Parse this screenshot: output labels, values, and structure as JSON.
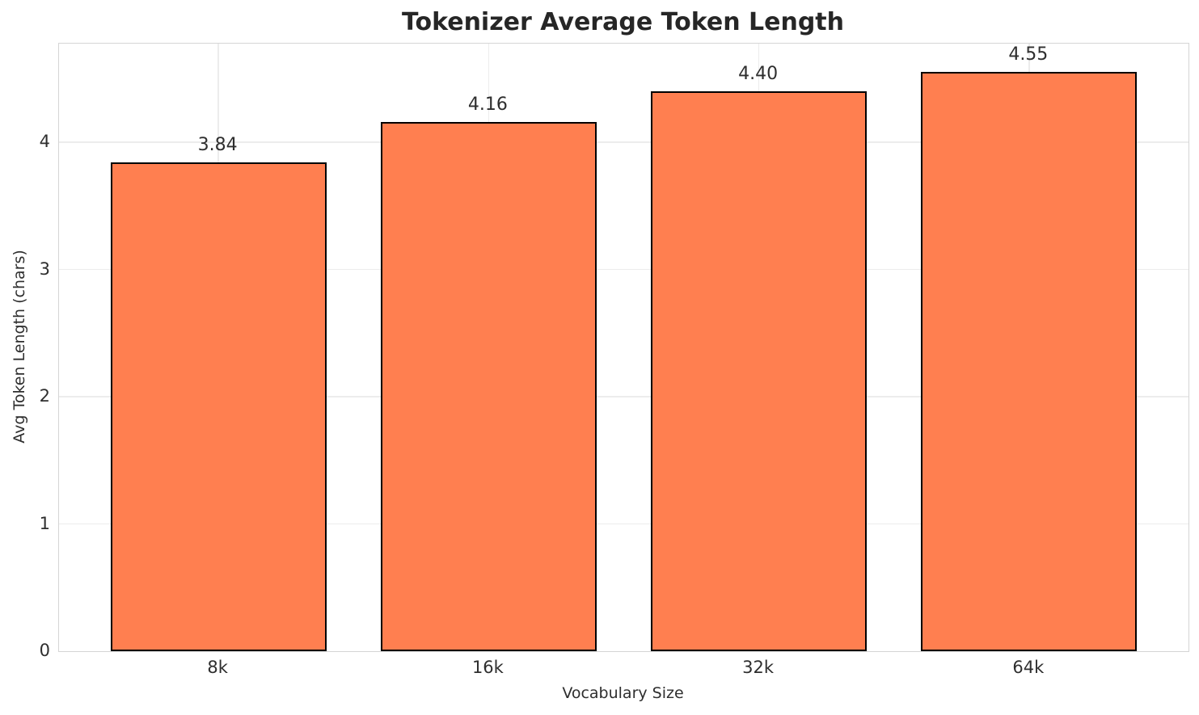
{
  "chart_data": {
    "type": "bar",
    "title": "Tokenizer Average Token Length",
    "xlabel": "Vocabulary Size",
    "ylabel": "Avg Token Length (chars)",
    "categories": [
      "8k",
      "16k",
      "32k",
      "64k"
    ],
    "values": [
      3.84,
      4.16,
      4.4,
      4.55
    ],
    "value_labels": [
      "3.84",
      "4.16",
      "4.40",
      "4.55"
    ],
    "yticks": [
      0,
      1,
      2,
      3,
      4
    ],
    "ylim": [
      0,
      4.775
    ],
    "xlim": [
      -0.59,
      3.59
    ],
    "bar_width": 0.8,
    "grid": true,
    "legend": null,
    "colors": {
      "bar_fill": "#FF7F50",
      "bar_edge": "#000000",
      "grid": "#ececec",
      "spine": "#d5d5d5",
      "text": "#2e2e2e",
      "title": "#262626"
    }
  }
}
